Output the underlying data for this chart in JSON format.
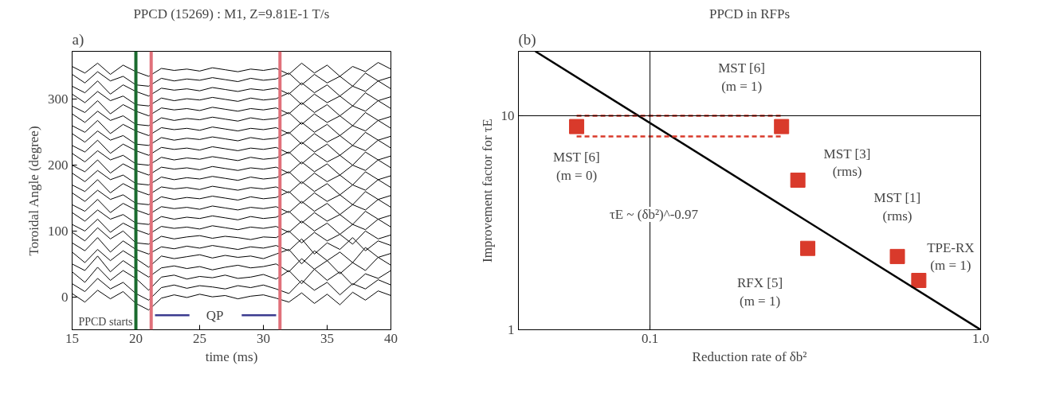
{
  "chart_data": [
    {
      "type": "line",
      "title": "PPCD (15269) : M1, Z=9.81E-1 T/s",
      "xlabel": "time (ms)",
      "ylabel": "Toroidal Angle (degree)",
      "xlim": [
        15,
        40
      ],
      "ylim": [
        -50,
        373
      ],
      "xticks": [
        15,
        20,
        25,
        30,
        35,
        40
      ],
      "yticks": [
        0,
        100,
        200,
        300
      ],
      "grid": false,
      "annotations": [
        "a)",
        {
          "text": "QP",
          "x": 26.2,
          "y": -28
        }
      ],
      "ref_lines": [
        {
          "axis": "x",
          "value": 20,
          "label": "PPCD starts",
          "color": "#1a6b2e"
        },
        {
          "axis": "x",
          "value": 21.2,
          "color": "#e0707a"
        },
        {
          "axis": "x",
          "value": 31.3,
          "color": "#e0707a"
        }
      ],
      "x": [
        15,
        16,
        17,
        18,
        19,
        20,
        21,
        22,
        23,
        24,
        25,
        26,
        27,
        28,
        29,
        30,
        31,
        32,
        33,
        34,
        35,
        36,
        37,
        38,
        39,
        40
      ],
      "series": [
        {
          "color": "#000000",
          "values": [
            5,
            -8,
            10,
            -3,
            8,
            -10,
            -20,
            -2,
            3,
            -1,
            4,
            0,
            2,
            -3,
            1,
            3,
            -2,
            -8,
            6,
            -10,
            4,
            -12,
            7,
            -5,
            9,
            2
          ]
        },
        {
          "color": "#000000",
          "values": [
            20,
            8,
            28,
            12,
            22,
            5,
            -5,
            14,
            18,
            13,
            17,
            15,
            12,
            17,
            14,
            18,
            12,
            5,
            25,
            10,
            22,
            3,
            20,
            12,
            26,
            18
          ]
        },
        {
          "color": "#000000",
          "values": [
            38,
            22,
            45,
            25,
            40,
            28,
            10,
            30,
            33,
            27,
            31,
            29,
            33,
            28,
            30,
            34,
            27,
            40,
            20,
            42,
            25,
            38,
            18,
            35,
            28,
            40
          ]
        },
        {
          "color": "#000000",
          "values": [
            50,
            40,
            62,
            38,
            55,
            42,
            30,
            44,
            47,
            43,
            46,
            41,
            45,
            48,
            44,
            46,
            50,
            38,
            58,
            42,
            55,
            35,
            52,
            40,
            60,
            48
          ]
        },
        {
          "color": "#000000",
          "values": [
            68,
            52,
            72,
            55,
            70,
            58,
            45,
            62,
            58,
            61,
            64,
            59,
            63,
            60,
            62,
            58,
            65,
            72,
            50,
            70,
            55,
            68,
            52,
            75,
            60,
            66
          ]
        },
        {
          "color": "#000000",
          "values": [
            82,
            70,
            90,
            68,
            85,
            72,
            65,
            76,
            73,
            77,
            74,
            78,
            75,
            72,
            76,
            74,
            78,
            70,
            88,
            65,
            82,
            72,
            90,
            70,
            85,
            78
          ]
        },
        {
          "color": "#000000",
          "values": [
            98,
            85,
            105,
            88,
            100,
            82,
            80,
            92,
            88,
            91,
            93,
            89,
            92,
            90,
            87,
            91,
            90,
            100,
            82,
            98,
            85,
            95,
            80,
            100,
            88,
            94
          ]
        },
        {
          "color": "#000000",
          "values": [
            110,
            100,
            118,
            98,
            112,
            102,
            95,
            107,
            104,
            106,
            103,
            108,
            105,
            102,
            106,
            104,
            107,
            98,
            115,
            100,
            112,
            95,
            110,
            102,
            118,
            106
          ]
        },
        {
          "color": "#000000",
          "values": [
            128,
            115,
            132,
            118,
            125,
            112,
            110,
            122,
            118,
            121,
            119,
            123,
            120,
            117,
            122,
            119,
            121,
            130,
            112,
            128,
            115,
            125,
            110,
            130,
            118,
            124
          ]
        },
        {
          "color": "#000000",
          "values": [
            140,
            130,
            148,
            128,
            142,
            132,
            125,
            137,
            134,
            136,
            133,
            138,
            135,
            132,
            136,
            134,
            137,
            128,
            145,
            130,
            142,
            125,
            140,
            132,
            148,
            136
          ]
        },
        {
          "color": "#000000",
          "values": [
            158,
            145,
            162,
            148,
            155,
            142,
            140,
            152,
            148,
            151,
            149,
            153,
            150,
            147,
            152,
            149,
            151,
            160,
            142,
            158,
            145,
            155,
            140,
            160,
            148,
            154
          ]
        },
        {
          "color": "#000000",
          "values": [
            170,
            160,
            178,
            158,
            172,
            162,
            155,
            167,
            164,
            166,
            163,
            168,
            165,
            162,
            166,
            164,
            167,
            158,
            175,
            160,
            172,
            155,
            170,
            162,
            178,
            166
          ]
        },
        {
          "color": "#000000",
          "values": [
            188,
            175,
            192,
            178,
            185,
            172,
            170,
            182,
            178,
            181,
            179,
            183,
            180,
            177,
            182,
            179,
            181,
            190,
            172,
            188,
            175,
            185,
            170,
            190,
            178,
            184
          ]
        },
        {
          "color": "#000000",
          "values": [
            200,
            190,
            208,
            188,
            202,
            192,
            185,
            197,
            194,
            196,
            193,
            198,
            195,
            192,
            196,
            194,
            197,
            188,
            205,
            190,
            202,
            185,
            200,
            192,
            208,
            196
          ]
        },
        {
          "color": "#000000",
          "values": [
            218,
            205,
            222,
            208,
            215,
            202,
            200,
            212,
            208,
            211,
            209,
            213,
            210,
            207,
            212,
            209,
            211,
            220,
            202,
            218,
            205,
            215,
            200,
            220,
            208,
            214
          ]
        },
        {
          "color": "#000000",
          "values": [
            230,
            220,
            238,
            218,
            232,
            222,
            215,
            227,
            224,
            226,
            223,
            228,
            225,
            222,
            226,
            224,
            227,
            218,
            235,
            220,
            232,
            215,
            230,
            222,
            238,
            226
          ]
        },
        {
          "color": "#000000",
          "values": [
            248,
            235,
            252,
            238,
            245,
            232,
            230,
            242,
            238,
            241,
            239,
            243,
            240,
            237,
            242,
            239,
            241,
            250,
            232,
            248,
            235,
            245,
            230,
            250,
            238,
            244
          ]
        },
        {
          "color": "#000000",
          "values": [
            260,
            250,
            268,
            248,
            262,
            252,
            245,
            257,
            254,
            256,
            253,
            258,
            255,
            252,
            256,
            254,
            257,
            248,
            265,
            250,
            262,
            245,
            260,
            252,
            268,
            256
          ]
        },
        {
          "color": "#000000",
          "values": [
            278,
            265,
            282,
            268,
            275,
            262,
            260,
            272,
            268,
            271,
            269,
            273,
            270,
            267,
            272,
            269,
            271,
            280,
            262,
            278,
            265,
            275,
            260,
            280,
            268,
            274
          ]
        },
        {
          "color": "#000000",
          "values": [
            290,
            280,
            298,
            278,
            292,
            282,
            275,
            287,
            284,
            286,
            283,
            288,
            285,
            282,
            286,
            284,
            287,
            278,
            295,
            280,
            292,
            275,
            290,
            282,
            298,
            286
          ]
        },
        {
          "color": "#000000",
          "values": [
            308,
            295,
            312,
            298,
            305,
            292,
            290,
            302,
            298,
            301,
            299,
            303,
            300,
            297,
            302,
            299,
            301,
            310,
            292,
            308,
            295,
            305,
            290,
            310,
            298,
            304
          ]
        },
        {
          "color": "#000000",
          "values": [
            320,
            310,
            328,
            308,
            322,
            312,
            305,
            317,
            314,
            316,
            313,
            318,
            315,
            312,
            316,
            314,
            317,
            308,
            325,
            310,
            322,
            305,
            320,
            312,
            328,
            316
          ]
        },
        {
          "color": "#000000",
          "values": [
            338,
            325,
            342,
            328,
            335,
            322,
            320,
            332,
            328,
            331,
            329,
            333,
            330,
            327,
            332,
            329,
            331,
            340,
            322,
            338,
            325,
            335,
            320,
            340,
            328,
            334
          ]
        },
        {
          "color": "#000000",
          "values": [
            350,
            340,
            355,
            338,
            352,
            342,
            335,
            347,
            344,
            346,
            343,
            348,
            345,
            342,
            346,
            344,
            347,
            338,
            355,
            340,
            352,
            335,
            350,
            342,
            356,
            346
          ]
        },
        {
          "color": "#3b3b8f",
          "x": [
            21.5,
            24.2,
            26,
            28.3,
            31
          ],
          "values": [
            -28,
            -28,
            null,
            -28,
            -28
          ]
        }
      ]
    },
    {
      "type": "scatter",
      "title": "PPCD in RFPs",
      "xlabel": "Reduction rate of δb²",
      "ylabel": "Improvement factor for τE",
      "log": "xy",
      "xlim": [
        0.04,
        1.0
      ],
      "ylim": [
        1,
        20
      ],
      "xticks": [
        0.1,
        {
          "value": 1,
          "label": "1.0"
        }
      ],
      "yticks": [
        1,
        10
      ],
      "grid": false,
      "ref_lines": [
        {
          "axis": "x",
          "value": 0.1,
          "color": "#000000"
        },
        {
          "axis": "y",
          "value": 10,
          "color": "#000000"
        }
      ],
      "annotations": [
        "(b)",
        {
          "text": "MST [6]\n(m = 1)",
          "x": 0.25,
          "y": 8.9
        },
        {
          "text": "MST [6]\n(m = 0)",
          "x": 0.06,
          "y": 8.9
        },
        {
          "text": "MST [3]\n(rms)",
          "x": 0.28,
          "y": 5.0
        },
        {
          "text": "MST [1]\n(rms)",
          "x": 0.56,
          "y": 2.2
        },
        {
          "text": "TPE-RX\n(m = 1)",
          "x": 0.65,
          "y": 1.7
        },
        {
          "text": "RFX [5]\n(m = 1)",
          "x": 0.3,
          "y": 2.4
        },
        "τE ~ (δb²)^-0.97"
      ],
      "series": [
        {
          "type": "scatter",
          "marker": "square",
          "color": "#d93a2b",
          "x": [
            0.06,
            0.25,
            0.28,
            0.3,
            0.56,
            0.65
          ],
          "values": [
            8.9,
            8.9,
            5.0,
            2.4,
            2.2,
            1.7
          ]
        },
        {
          "type": "line",
          "color": "#000000",
          "x": [
            0.045,
            1
          ],
          "values": [
            20,
            1
          ]
        },
        {
          "type": "line",
          "color": "#d93a2b",
          "line_style": "dashed",
          "x": [
            0.06,
            0.25
          ],
          "values": [
            10,
            10
          ]
        },
        {
          "type": "line",
          "color": "#d93a2b",
          "line_style": "dashed",
          "x": [
            0.06,
            0.25
          ],
          "values": [
            8,
            8
          ]
        }
      ]
    }
  ]
}
